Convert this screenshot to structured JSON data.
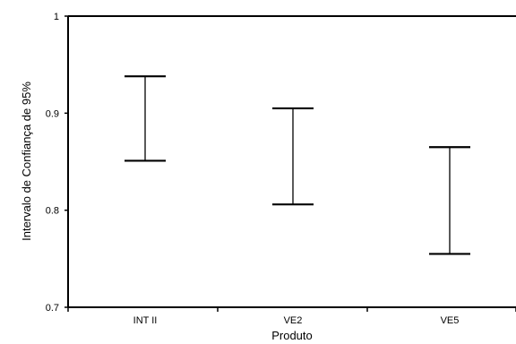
{
  "chart_data": {
    "type": "errorbar",
    "title": "",
    "xlabel": "Produto",
    "ylabel": "Intervalo de Confiança de 95%",
    "ylim": [
      0.7,
      1.0
    ],
    "yticks": [
      {
        "value": 1.0,
        "label": "1"
      },
      {
        "value": 0.9,
        "label": "0.9"
      },
      {
        "value": 0.8,
        "label": "0.8"
      },
      {
        "value": 0.7,
        "label": "0.7"
      }
    ],
    "categories": [
      "INT II",
      "VE2",
      "VE5"
    ],
    "series": [
      {
        "intervals": [
          {
            "category": "INT II",
            "lower": 0.851,
            "upper": 0.938
          },
          {
            "category": "VE2",
            "lower": 0.806,
            "upper": 0.905
          },
          {
            "category": "VE5",
            "lower": 0.755,
            "upper": 0.865
          }
        ]
      }
    ],
    "grid": false,
    "legend": "none"
  }
}
